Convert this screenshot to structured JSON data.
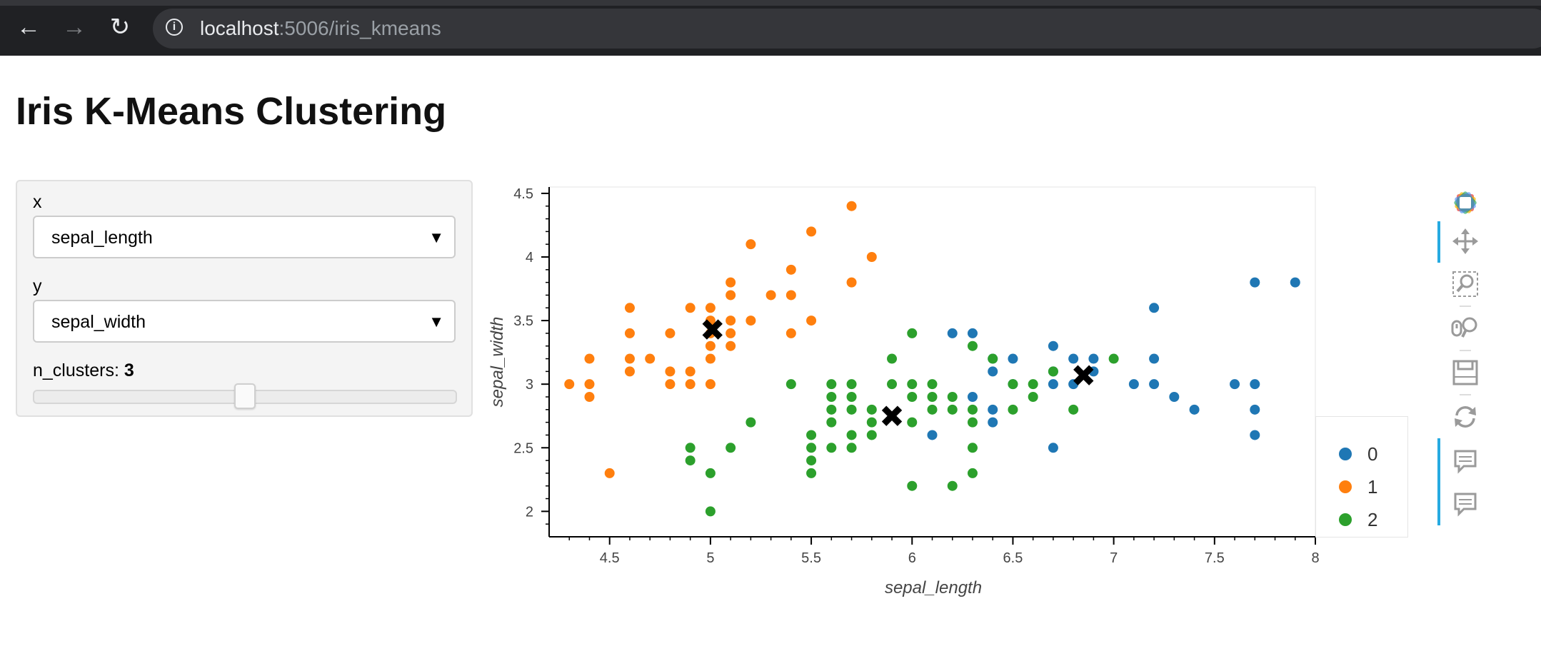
{
  "browser": {
    "url_host": "localhost",
    "url_rest": ":5006/iris_kmeans",
    "icons": [
      "back-arrow-icon",
      "forward-arrow-icon",
      "reload-icon",
      "info-icon"
    ]
  },
  "page": {
    "title": "Iris K-Means Clustering"
  },
  "widgets": {
    "x_label": "x",
    "x_value": "sepal_length",
    "y_label": "y",
    "y_value": "sepal_width",
    "n_clusters_label": "n_clusters: ",
    "n_clusters_value": "3",
    "n_clusters_fraction": 0.5
  },
  "colors": {
    "c0": "#1f77b4",
    "c1": "#ff7f0e",
    "c2": "#2ca02c",
    "centroid": "#000000",
    "tool_active": "#26aae1"
  },
  "toolbar": {
    "tools": [
      "bokeh-logo-icon",
      "pan-icon",
      "box-zoom-icon",
      "wheel-zoom-icon",
      "save-icon",
      "reset-icon",
      "hover-icon",
      "hover-icon"
    ]
  },
  "chart_data": {
    "type": "scatter",
    "xlabel": "sepal_length",
    "ylabel": "sepal_width",
    "xlim": [
      4.2,
      8.0
    ],
    "ylim": [
      1.8,
      4.55
    ],
    "xticks": [
      "4.5",
      "5",
      "5.5",
      "6",
      "6.5",
      "7",
      "7.5",
      "8"
    ],
    "yticks": [
      "2",
      "2.5",
      "3",
      "3.5",
      "4",
      "4.5"
    ],
    "legend": [
      "0",
      "1",
      "2"
    ],
    "legend_position": "right",
    "series": [
      {
        "name": "0",
        "points": [
          [
            7.7,
            3.8
          ],
          [
            7.9,
            3.8
          ],
          [
            7.2,
            3.6
          ],
          [
            6.2,
            3.4
          ],
          [
            6.3,
            3.4
          ],
          [
            6.7,
            3.3
          ],
          [
            6.4,
            3.2
          ],
          [
            6.5,
            3.2
          ],
          [
            6.8,
            3.2
          ],
          [
            6.9,
            3.2
          ],
          [
            7.2,
            3.2
          ],
          [
            6.4,
            3.1
          ],
          [
            6.7,
            3.1
          ],
          [
            6.9,
            3.1
          ],
          [
            6.3,
            2.9
          ],
          [
            6.5,
            3.0
          ],
          [
            6.7,
            3.0
          ],
          [
            6.8,
            3.0
          ],
          [
            7.1,
            3.0
          ],
          [
            7.2,
            3.0
          ],
          [
            7.6,
            3.0
          ],
          [
            7.7,
            3.0
          ],
          [
            7.3,
            2.9
          ],
          [
            6.4,
            2.8
          ],
          [
            7.4,
            2.8
          ],
          [
            7.7,
            2.8
          ],
          [
            6.4,
            2.7
          ],
          [
            6.1,
            2.6
          ],
          [
            7.7,
            2.6
          ],
          [
            6.7,
            2.5
          ]
        ]
      },
      {
        "name": "1",
        "points": [
          [
            5.7,
            4.4
          ],
          [
            5.5,
            4.2
          ],
          [
            5.2,
            4.1
          ],
          [
            5.8,
            4.0
          ],
          [
            5.4,
            3.9
          ],
          [
            5.1,
            3.8
          ],
          [
            5.7,
            3.8
          ],
          [
            5.3,
            3.7
          ],
          [
            5.1,
            3.7
          ],
          [
            5.4,
            3.7
          ],
          [
            4.6,
            3.6
          ],
          [
            4.9,
            3.6
          ],
          [
            5.0,
            3.6
          ],
          [
            5.1,
            3.5
          ],
          [
            5.2,
            3.5
          ],
          [
            5.0,
            3.5
          ],
          [
            5.5,
            3.5
          ],
          [
            4.6,
            3.4
          ],
          [
            4.8,
            3.4
          ],
          [
            5.0,
            3.4
          ],
          [
            5.1,
            3.4
          ],
          [
            5.4,
            3.4
          ],
          [
            5.0,
            3.3
          ],
          [
            5.1,
            3.3
          ],
          [
            4.4,
            3.2
          ],
          [
            4.6,
            3.2
          ],
          [
            4.7,
            3.2
          ],
          [
            5.0,
            3.2
          ],
          [
            4.6,
            3.1
          ],
          [
            4.8,
            3.1
          ],
          [
            4.9,
            3.1
          ],
          [
            4.3,
            3.0
          ],
          [
            4.4,
            3.0
          ],
          [
            4.8,
            3.0
          ],
          [
            4.9,
            3.0
          ],
          [
            5.0,
            3.0
          ],
          [
            4.4,
            2.9
          ],
          [
            4.5,
            2.3
          ]
        ]
      },
      {
        "name": "2",
        "points": [
          [
            6.0,
            3.4
          ],
          [
            6.3,
            3.3
          ],
          [
            5.9,
            3.2
          ],
          [
            6.4,
            3.2
          ],
          [
            7.0,
            3.2
          ],
          [
            6.7,
            3.1
          ],
          [
            5.4,
            3.0
          ],
          [
            5.6,
            3.0
          ],
          [
            5.7,
            3.0
          ],
          [
            5.9,
            3.0
          ],
          [
            6.0,
            3.0
          ],
          [
            6.1,
            3.0
          ],
          [
            6.5,
            3.0
          ],
          [
            6.6,
            3.0
          ],
          [
            5.6,
            2.9
          ],
          [
            5.7,
            2.9
          ],
          [
            6.0,
            2.9
          ],
          [
            6.1,
            2.9
          ],
          [
            6.2,
            2.9
          ],
          [
            6.6,
            2.9
          ],
          [
            5.6,
            2.8
          ],
          [
            5.7,
            2.8
          ],
          [
            5.8,
            2.8
          ],
          [
            6.1,
            2.8
          ],
          [
            6.2,
            2.8
          ],
          [
            6.3,
            2.8
          ],
          [
            6.5,
            2.8
          ],
          [
            6.8,
            2.8
          ],
          [
            5.2,
            2.7
          ],
          [
            5.6,
            2.7
          ],
          [
            5.8,
            2.7
          ],
          [
            6.0,
            2.7
          ],
          [
            6.3,
            2.7
          ],
          [
            5.5,
            2.6
          ],
          [
            5.7,
            2.6
          ],
          [
            5.8,
            2.6
          ],
          [
            4.9,
            2.5
          ],
          [
            5.1,
            2.5
          ],
          [
            5.5,
            2.5
          ],
          [
            5.6,
            2.5
          ],
          [
            5.7,
            2.5
          ],
          [
            6.3,
            2.5
          ],
          [
            4.9,
            2.4
          ],
          [
            5.5,
            2.4
          ],
          [
            5.0,
            2.3
          ],
          [
            5.5,
            2.3
          ],
          [
            6.3,
            2.3
          ],
          [
            6.0,
            2.2
          ],
          [
            6.2,
            2.2
          ],
          [
            5.0,
            2.0
          ]
        ]
      }
    ],
    "centroids": [
      [
        6.85,
        3.07
      ],
      [
        5.01,
        3.43
      ],
      [
        5.9,
        2.75
      ]
    ]
  }
}
